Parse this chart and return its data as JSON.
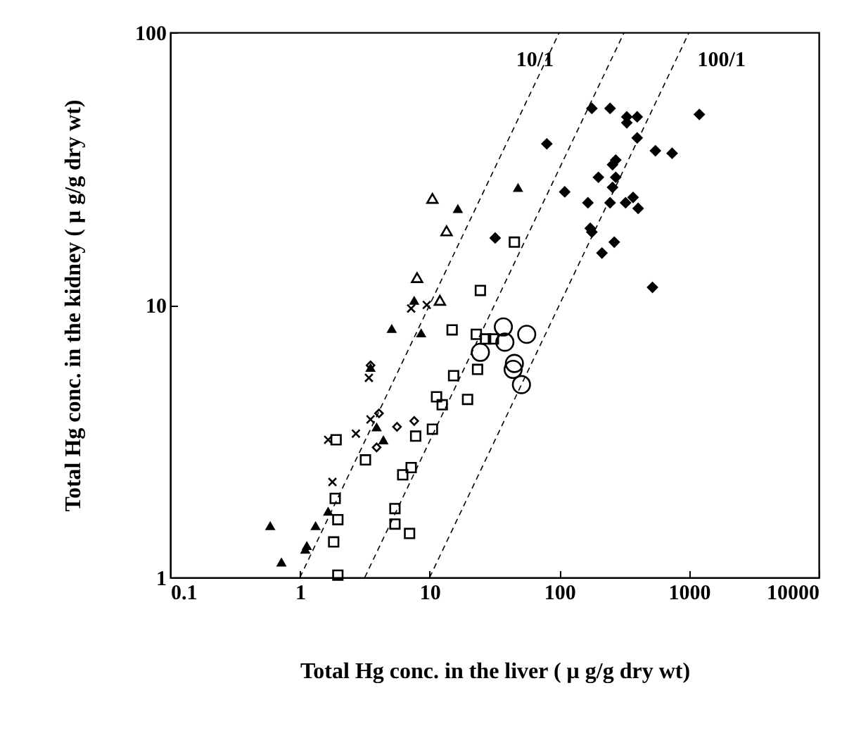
{
  "chart_data": {
    "type": "scatter",
    "xlabel": "Total Hg conc. in the liver ( μ g/g dry wt)",
    "ylabel": "Total Hg conc. in the kidney ( μ g/g dry wt)",
    "log": "xy",
    "xlim": [
      0.1,
      10000
    ],
    "ylim": [
      1,
      100
    ],
    "xticks": [
      0.1,
      1,
      10,
      100,
      1000,
      10000
    ],
    "yticks": [
      1,
      10,
      100
    ],
    "grid": false,
    "series": [
      {
        "type": "line",
        "name": "10/1",
        "color": "#000000",
        "line_style": "dashed",
        "marker": "none",
        "x": [
          1,
          100
        ],
        "values": [
          1,
          100
        ]
      },
      {
        "type": "line",
        "color": "#000000",
        "line_style": "dashed",
        "marker": "none",
        "x": [
          3.16,
          316
        ],
        "values": [
          1,
          100
        ]
      },
      {
        "type": "line",
        "name": "100/1",
        "color": "#000000",
        "line_style": "dashed",
        "marker": "none",
        "x": [
          10,
          1000
        ],
        "values": [
          1,
          100
        ]
      },
      {
        "color": "#000000",
        "marker": "diamond",
        "x": [
          178,
          246,
          331,
          398,
          331,
          1200,
          80,
          398,
          550,
          740,
          272,
          257,
          200,
          272,
          257,
          110,
          166,
          246,
          324,
          370,
          405,
          173,
          178,
          32,
          265,
          213,
          522
        ],
        "values": [
          52.6,
          52.6,
          49,
          49,
          46.6,
          50,
          39,
          41,
          36.8,
          36,
          34,
          32.7,
          29.4,
          29.4,
          27,
          26,
          23.7,
          23.7,
          23.7,
          24.8,
          22.6,
          19.1,
          18.5,
          17.6,
          17,
          15.5,
          11.6
        ]
      },
      {
        "color": "#000000",
        "marker": "triangle",
        "x": [
          10.5,
          13.5,
          8,
          12
        ],
        "values": [
          24.6,
          18.7,
          12.6,
          10.4
        ]
      },
      {
        "color": "#000000",
        "marker": "triangle",
        "x": [
          16.5,
          48,
          7.6,
          5.1,
          8.6,
          3.5,
          3.9,
          4.4,
          1.65,
          1.32,
          0.59,
          1.1,
          1.13,
          0.72
        ],
        "values": [
          22.6,
          27,
          10.4,
          8.2,
          7.9,
          5.9,
          3.57,
          3.2,
          1.75,
          1.55,
          1.55,
          1.27,
          1.31,
          1.14
        ]
      },
      {
        "color": "#000000",
        "marker": "cross",
        "x": [
          7.2,
          9.5,
          3.4,
          3.5,
          1.65,
          2.7,
          1.78
        ],
        "values": [
          9.7,
          10,
          5.4,
          3.8,
          3.2,
          3.37,
          2.24
        ]
      },
      {
        "color": "#000000",
        "marker": "diamond",
        "x": [
          3.5,
          4.07,
          5.6,
          7.6,
          3.9
        ],
        "values": [
          6,
          4,
          3.57,
          3.75,
          3
        ]
      },
      {
        "color": "#000000",
        "marker": "square",
        "x": [
          24.6,
          14.9,
          22.9,
          27,
          31,
          23.4,
          15.3,
          11.3,
          12.5,
          19.6,
          10.5,
          7.8,
          1.9,
          7.2,
          5.4,
          5.4,
          7,
          1.87,
          1.96,
          45
        ],
        "values": [
          11.3,
          8.1,
          7.8,
          7.5,
          7.5,
          5.8,
          5.5,
          4.6,
          4.3,
          4.5,
          3.5,
          3.3,
          3.2,
          2.53,
          1.79,
          1.57,
          1.45,
          1.95,
          1.63,
          17
        ]
      },
      {
        "color": "#000000",
        "marker": "square",
        "x": [
          6.2,
          3.2,
          1.82,
          1.96
        ],
        "values": [
          2.38,
          2.7,
          1.35,
          1.02
        ]
      },
      {
        "color": "#000000",
        "marker": "circle",
        "x": [
          37,
          56,
          38,
          24.6,
          45,
          44,
          51
        ],
        "values": [
          8.3,
          7.8,
          7.3,
          6.7,
          6.1,
          5.8,
          5.1
        ]
      }
    ]
  }
}
